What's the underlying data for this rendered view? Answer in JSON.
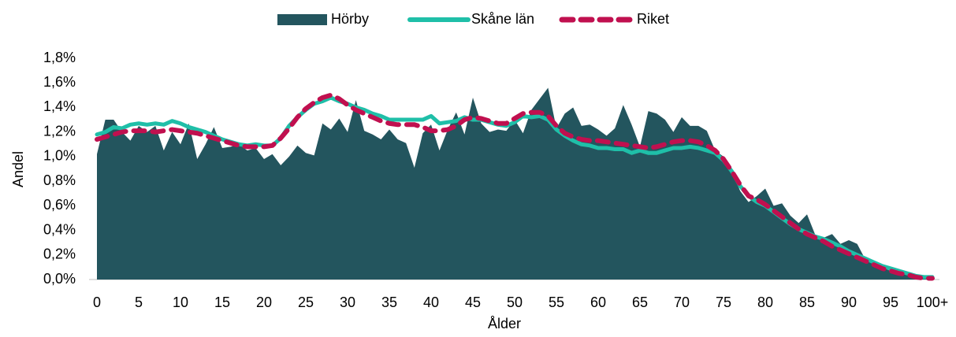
{
  "chart_data": {
    "type": "area-line",
    "xlabel": "Ålder",
    "ylabel": "Andel",
    "categories": [
      "0",
      null,
      null,
      null,
      null,
      "5",
      null,
      null,
      null,
      null,
      "10",
      null,
      null,
      null,
      null,
      "15",
      null,
      null,
      null,
      null,
      "20",
      null,
      null,
      null,
      null,
      "25",
      null,
      null,
      null,
      null,
      "30",
      null,
      null,
      null,
      null,
      "35",
      null,
      null,
      null,
      null,
      "40",
      null,
      null,
      null,
      null,
      "45",
      null,
      null,
      null,
      null,
      "50",
      null,
      null,
      null,
      null,
      "55",
      null,
      null,
      null,
      null,
      "60",
      null,
      null,
      null,
      null,
      "65",
      null,
      null,
      null,
      null,
      "70",
      null,
      null,
      null,
      null,
      "75",
      null,
      null,
      null,
      null,
      "80",
      null,
      null,
      null,
      null,
      "85",
      null,
      null,
      null,
      null,
      "90",
      null,
      null,
      null,
      null,
      "95",
      null,
      null,
      null,
      null,
      "100+"
    ],
    "series": [
      {
        "name": "Hörby",
        "style": "area",
        "color": "#23555e",
        "values": [
          1.02,
          1.3,
          1.3,
          1.2,
          1.13,
          1.25,
          1.2,
          1.25,
          1.05,
          1.2,
          1.1,
          1.27,
          0.98,
          1.1,
          1.24,
          1.07,
          1.08,
          1.1,
          1.05,
          1.07,
          0.98,
          1.02,
          0.93,
          1.0,
          1.09,
          1.03,
          1.01,
          1.27,
          1.22,
          1.31,
          1.2,
          1.46,
          1.21,
          1.18,
          1.14,
          1.22,
          1.14,
          1.11,
          0.91,
          1.19,
          1.26,
          1.05,
          1.22,
          1.36,
          1.18,
          1.48,
          1.27,
          1.2,
          1.22,
          1.21,
          1.3,
          1.19,
          1.38,
          1.47,
          1.56,
          1.23,
          1.35,
          1.4,
          1.25,
          1.26,
          1.22,
          1.17,
          1.23,
          1.42,
          1.26,
          1.08,
          1.37,
          1.35,
          1.3,
          1.2,
          1.32,
          1.25,
          1.25,
          1.21,
          1.05,
          1.0,
          0.88,
          0.72,
          0.63,
          0.68,
          0.74,
          0.6,
          0.62,
          0.52,
          0.46,
          0.53,
          0.36,
          0.34,
          0.37,
          0.29,
          0.32,
          0.29,
          0.16,
          0.13,
          0.1,
          0.07,
          0.05,
          0.04,
          0.02,
          0.02,
          0.02
        ]
      },
      {
        "name": "Skåne län",
        "style": "line",
        "color": "#1fbfa8",
        "values": [
          1.18,
          1.2,
          1.24,
          1.23,
          1.26,
          1.27,
          1.26,
          1.27,
          1.26,
          1.29,
          1.27,
          1.24,
          1.22,
          1.2,
          1.17,
          1.14,
          1.12,
          1.1,
          1.09,
          1.1,
          1.09,
          1.09,
          1.15,
          1.25,
          1.32,
          1.38,
          1.43,
          1.45,
          1.48,
          1.45,
          1.43,
          1.4,
          1.38,
          1.35,
          1.33,
          1.3,
          1.3,
          1.3,
          1.3,
          1.3,
          1.33,
          1.27,
          1.28,
          1.29,
          1.32,
          1.3,
          1.3,
          1.28,
          1.26,
          1.25,
          1.28,
          1.33,
          1.32,
          1.33,
          1.3,
          1.22,
          1.17,
          1.13,
          1.1,
          1.09,
          1.07,
          1.07,
          1.06,
          1.06,
          1.03,
          1.05,
          1.03,
          1.03,
          1.05,
          1.07,
          1.07,
          1.08,
          1.07,
          1.05,
          1.03,
          0.97,
          0.88,
          0.76,
          0.68,
          0.63,
          0.6,
          0.55,
          0.5,
          0.45,
          0.41,
          0.38,
          0.35,
          0.33,
          0.3,
          0.27,
          0.23,
          0.2,
          0.17,
          0.14,
          0.11,
          0.09,
          0.07,
          0.05,
          0.03,
          0.02,
          0.02
        ]
      },
      {
        "name": "Riket",
        "style": "dashed",
        "color": "#c0104f",
        "values": [
          1.14,
          1.16,
          1.18,
          1.2,
          1.21,
          1.21,
          1.21,
          1.2,
          1.21,
          1.22,
          1.21,
          1.2,
          1.19,
          1.17,
          1.15,
          1.13,
          1.11,
          1.09,
          1.08,
          1.08,
          1.08,
          1.09,
          1.15,
          1.23,
          1.32,
          1.39,
          1.44,
          1.48,
          1.5,
          1.47,
          1.42,
          1.38,
          1.35,
          1.32,
          1.29,
          1.27,
          1.26,
          1.26,
          1.26,
          1.24,
          1.21,
          1.21,
          1.22,
          1.25,
          1.3,
          1.32,
          1.31,
          1.29,
          1.27,
          1.27,
          1.31,
          1.35,
          1.36,
          1.36,
          1.33,
          1.25,
          1.19,
          1.16,
          1.14,
          1.13,
          1.13,
          1.12,
          1.11,
          1.1,
          1.09,
          1.08,
          1.07,
          1.08,
          1.1,
          1.12,
          1.13,
          1.13,
          1.12,
          1.09,
          1.05,
          0.98,
          0.88,
          0.77,
          0.68,
          0.65,
          0.61,
          0.56,
          0.51,
          0.46,
          0.41,
          0.37,
          0.34,
          0.31,
          0.27,
          0.24,
          0.21,
          0.18,
          0.15,
          0.12,
          0.09,
          0.07,
          0.05,
          0.04,
          0.02,
          0.01,
          0.01
        ]
      }
    ],
    "ylim": [
      0,
      1.8
    ],
    "yticks": [
      {
        "value": 0,
        "label": "0,0%"
      },
      {
        "value": 0.2,
        "label": "0,2%"
      },
      {
        "value": 0.4,
        "label": "0,4%"
      },
      {
        "value": 0.6,
        "label": "0,6%"
      },
      {
        "value": 0.8,
        "label": "0,8%"
      },
      {
        "value": 1.0,
        "label": "1,0%"
      },
      {
        "value": 1.2,
        "label": "1,2%"
      },
      {
        "value": 1.4,
        "label": "1,4%"
      },
      {
        "value": 1.6,
        "label": "1,6%"
      },
      {
        "value": 1.8,
        "label": "1,8%"
      }
    ],
    "legend": "top"
  }
}
